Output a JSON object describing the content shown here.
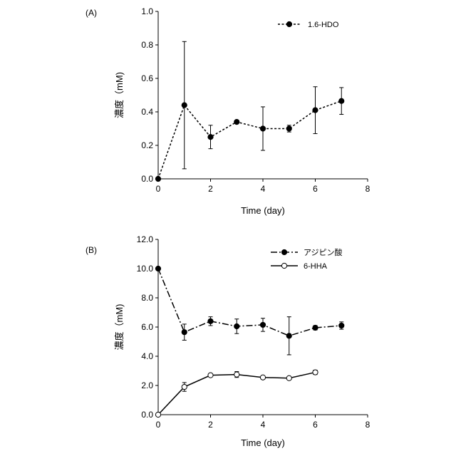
{
  "chart_data": [
    {
      "panel_label": "(A)",
      "type": "line",
      "xlabel": "Time (day)",
      "ylabel": "濃度（mM)",
      "xlim": [
        0,
        8
      ],
      "ylim": [
        0,
        1.0
      ],
      "x_ticks": [
        0,
        2,
        4,
        6,
        8
      ],
      "x_tick_labels": [
        "0",
        "2",
        "4",
        "6",
        "8"
      ],
      "y_ticks": [
        0,
        0.2,
        0.4,
        0.6,
        0.8,
        1.0
      ],
      "y_tick_labels": [
        "0.0",
        "0.2",
        "0.4",
        "0.6",
        "0.8",
        "1.0"
      ],
      "legend_position": "top-right",
      "series": [
        {
          "name": "1.6-HDO",
          "line_style": "dotted",
          "marker": "filled-circle",
          "x": [
            0,
            1,
            2,
            3,
            4,
            5,
            6,
            7
          ],
          "y": [
            0.0,
            0.44,
            0.25,
            0.34,
            0.3,
            0.3,
            0.41,
            0.465
          ],
          "err": [
            0,
            0.38,
            0.07,
            0.01,
            0.13,
            0.02,
            0.14,
            0.08
          ]
        }
      ]
    },
    {
      "panel_label": "(B)",
      "type": "line",
      "xlabel": "Time (day)",
      "ylabel": "濃度（mM)",
      "xlim": [
        0,
        8
      ],
      "ylim": [
        0,
        12.0
      ],
      "x_ticks": [
        0,
        2,
        4,
        6,
        8
      ],
      "x_tick_labels": [
        "0",
        "2",
        "4",
        "6",
        "8"
      ],
      "y_ticks": [
        0,
        2,
        4,
        6,
        8,
        10,
        12
      ],
      "y_tick_labels": [
        "0.0",
        "2.0",
        "4.0",
        "6.0",
        "8.0",
        "10.0",
        "12.0"
      ],
      "legend_position": "top-right",
      "series": [
        {
          "name": "アジピン酸",
          "line_style": "dash-dot",
          "marker": "filled-circle",
          "x": [
            0,
            1,
            2,
            3,
            4,
            5,
            6,
            7
          ],
          "y": [
            10.0,
            5.65,
            6.4,
            6.05,
            6.15,
            5.4,
            5.95,
            6.1
          ],
          "err": [
            0,
            0.55,
            0.3,
            0.5,
            0.45,
            1.3,
            0.15,
            0.25
          ]
        },
        {
          "name": "6-HHA",
          "line_style": "solid",
          "marker": "open-circle",
          "x": [
            0,
            1,
            2,
            3,
            4,
            5,
            6
          ],
          "y": [
            0.0,
            1.9,
            2.7,
            2.75,
            2.55,
            2.5,
            2.9
          ],
          "err": [
            0,
            0.3,
            0.1,
            0.2,
            0.1,
            0.1,
            0.15
          ]
        }
      ]
    }
  ]
}
